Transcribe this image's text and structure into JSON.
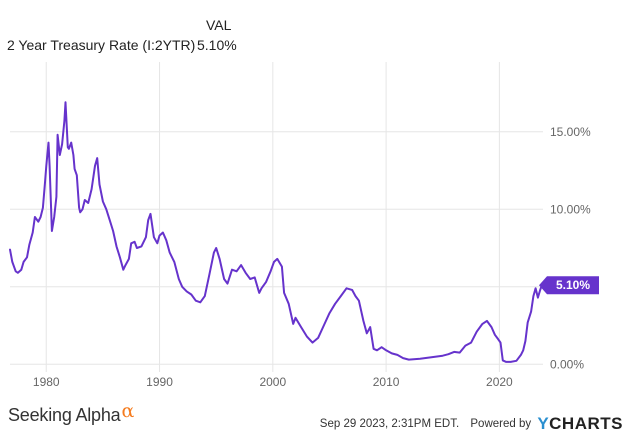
{
  "legend": {
    "column_header": "VAL",
    "series_label": "2 Year Treasury Rate (I:2YTR)",
    "series_value": "5.10%"
  },
  "chart_data": {
    "type": "line",
    "xlabel": "",
    "ylabel": "",
    "xlim": [
      1976.8,
      2023.85
    ],
    "ylim": [
      -0.5,
      19.5
    ],
    "grid": true,
    "x_ticks": [
      1980,
      1990,
      2000,
      2010,
      2020
    ],
    "x_tick_labels": [
      "1980",
      "1990",
      "2000",
      "2010",
      "2020"
    ],
    "y_ticks": [
      0,
      5,
      10,
      15
    ],
    "y_tick_labels": [
      "0.00%",
      "",
      "10.00%",
      "15.00%"
    ],
    "series": [
      {
        "color": "#6633cc",
        "last_value_label": "5.10%",
        "x": [
          1976.8,
          1977.0,
          1977.3,
          1977.5,
          1977.8,
          1978.0,
          1978.3,
          1978.5,
          1978.8,
          1979.0,
          1979.3,
          1979.5,
          1979.7,
          1979.9,
          1980.0,
          1980.2,
          1980.3,
          1980.5,
          1980.7,
          1980.9,
          1981.0,
          1981.2,
          1981.4,
          1981.6,
          1981.7,
          1981.9,
          1982.0,
          1982.2,
          1982.4,
          1982.5,
          1982.7,
          1982.9,
          1983.0,
          1983.2,
          1983.4,
          1983.7,
          1984.0,
          1984.3,
          1984.5,
          1984.7,
          1985.0,
          1985.3,
          1985.6,
          1985.9,
          1986.2,
          1986.5,
          1986.8,
          1987.0,
          1987.3,
          1987.5,
          1987.8,
          1988.0,
          1988.4,
          1988.8,
          1989.0,
          1989.2,
          1989.5,
          1989.8,
          1990.0,
          1990.3,
          1990.6,
          1990.9,
          1991.3,
          1991.7,
          1992.0,
          1992.4,
          1992.8,
          1993.2,
          1993.6,
          1994.0,
          1994.4,
          1994.8,
          1995.0,
          1995.3,
          1995.7,
          1996.0,
          1996.4,
          1996.8,
          1997.2,
          1997.6,
          1998.0,
          1998.4,
          1998.8,
          1999.0,
          1999.4,
          1999.8,
          2000.1,
          2000.4,
          2000.8,
          2001.0,
          2001.4,
          2001.8,
          2002.0,
          2002.5,
          2003.0,
          2003.5,
          2004.0,
          2004.5,
          2005.0,
          2005.5,
          2006.0,
          2006.5,
          2007.0,
          2007.3,
          2007.6,
          2008.0,
          2008.3,
          2008.6,
          2008.9,
          2009.2,
          2009.6,
          2010.0,
          2010.5,
          2011.0,
          2011.5,
          2012.0,
          2013.0,
          2014.0,
          2015.0,
          2015.5,
          2016.0,
          2016.5,
          2017.0,
          2017.5,
          2018.0,
          2018.5,
          2018.9,
          2019.3,
          2019.6,
          2019.9,
          2020.1,
          2020.3,
          2020.6,
          2021.0,
          2021.5,
          2021.9,
          2022.1,
          2022.3,
          2022.5,
          2022.8,
          2023.0,
          2023.2,
          2023.4,
          2023.6,
          2023.75
        ],
        "values": [
          7.4,
          6.6,
          6.0,
          5.9,
          6.1,
          6.6,
          6.9,
          7.7,
          8.5,
          9.5,
          9.2,
          9.5,
          10.1,
          11.8,
          12.8,
          14.3,
          12.8,
          8.6,
          9.5,
          10.8,
          14.8,
          13.5,
          14.2,
          15.7,
          16.9,
          14.0,
          13.9,
          14.3,
          13.5,
          12.6,
          12.2,
          10.1,
          9.8,
          10.0,
          10.6,
          10.4,
          11.3,
          12.8,
          13.3,
          11.6,
          10.5,
          10.0,
          9.3,
          8.6,
          7.6,
          6.9,
          6.1,
          6.4,
          6.8,
          7.8,
          7.9,
          7.5,
          7.6,
          8.2,
          9.3,
          9.7,
          8.2,
          7.8,
          8.3,
          8.5,
          8.0,
          7.2,
          6.6,
          5.5,
          5.0,
          4.7,
          4.5,
          4.1,
          4.0,
          4.4,
          5.8,
          7.2,
          7.5,
          6.8,
          5.5,
          5.2,
          6.1,
          6.0,
          6.4,
          5.9,
          5.5,
          5.6,
          4.6,
          4.9,
          5.3,
          6.0,
          6.6,
          6.8,
          6.3,
          4.6,
          3.9,
          2.6,
          3.0,
          2.4,
          1.8,
          1.4,
          1.7,
          2.5,
          3.3,
          3.9,
          4.4,
          4.9,
          4.8,
          4.4,
          4.1,
          2.8,
          2.0,
          2.4,
          1.0,
          0.9,
          1.1,
          0.9,
          0.7,
          0.6,
          0.4,
          0.3,
          0.35,
          0.45,
          0.55,
          0.65,
          0.8,
          0.75,
          1.2,
          1.4,
          2.1,
          2.6,
          2.8,
          2.4,
          1.9,
          1.6,
          1.4,
          0.25,
          0.15,
          0.15,
          0.22,
          0.6,
          0.9,
          1.5,
          2.7,
          3.4,
          4.4,
          4.9,
          4.3,
          4.8,
          5.1
        ]
      }
    ]
  },
  "footer": {
    "brand_left": "Seeking Alpha",
    "brand_left_symbol": "α",
    "timestamp": "Sep 29 2023, 2:31PM EDT.",
    "powered_by": "Powered by",
    "brand_right_mark": "Y",
    "brand_right_text": "CHARTS"
  },
  "colors": {
    "line": "#6633cc",
    "grid": "#e6e6e6",
    "tick_text": "#666666",
    "alpha_orange": "#f57c1f",
    "ycharts_blue": "#2a8fd0"
  }
}
